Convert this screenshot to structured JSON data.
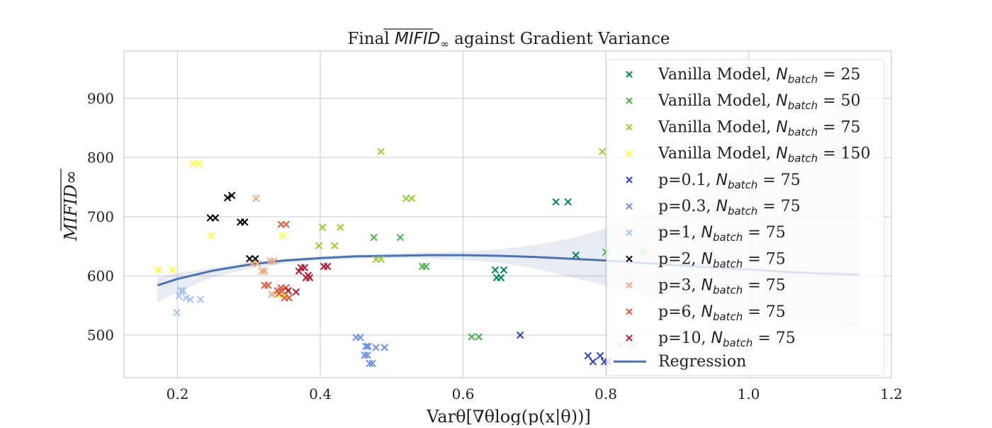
{
  "chart_data": {
    "type": "scatter",
    "title": "Final MIFID∞ against Gradient Variance",
    "title_parts": {
      "prefix": "Final ",
      "main": "MIFID",
      "sub": "∞",
      "suffix": " against Gradient Variance"
    },
    "xlabel": "Varθ[∇θlog(p(x|θ))]",
    "ylabel": "MIFID∞",
    "xlim": [
      0.125,
      1.2
    ],
    "ylim": [
      428,
      980
    ],
    "x_ticks": [
      0.2,
      0.4,
      0.6,
      0.8,
      1.0,
      1.2
    ],
    "x_tick_labels": [
      "0.2",
      "0.4",
      "0.6",
      "0.8",
      "1.0",
      "1.2"
    ],
    "y_ticks": [
      500,
      600,
      700,
      800,
      900
    ],
    "y_tick_labels": [
      "500",
      "600",
      "700",
      "800",
      "900"
    ],
    "grid": true,
    "legend_position": "top-right",
    "series": [
      {
        "name": "Vanilla Model, N_batch = 25",
        "label_prefix": "Vanilla Model, ",
        "n_value": "25",
        "color": "#00875a",
        "points": [
          [
            0.73,
            725
          ],
          [
            0.747,
            725
          ],
          [
            0.758,
            635
          ],
          [
            0.645,
            610
          ],
          [
            0.657,
            610
          ],
          [
            0.647,
            597
          ],
          [
            0.653,
            597
          ]
        ]
      },
      {
        "name": "Vanilla Model, N_batch = 50",
        "label_prefix": "Vanilla Model, ",
        "n_value": "50",
        "color": "#4daf4a",
        "points": [
          [
            0.475,
            665
          ],
          [
            0.512,
            665
          ],
          [
            0.543,
            616
          ],
          [
            0.548,
            616
          ],
          [
            0.612,
            497
          ],
          [
            0.622,
            497
          ],
          [
            0.8,
            640
          ]
        ]
      },
      {
        "name": "Vanilla Model, N_batch = 75",
        "label_prefix": "Vanilla Model, ",
        "n_value": "75",
        "color": "#9acd32",
        "points": [
          [
            0.485,
            810
          ],
          [
            0.52,
            731
          ],
          [
            0.528,
            731
          ],
          [
            0.403,
            682
          ],
          [
            0.428,
            682
          ],
          [
            0.398,
            651
          ],
          [
            0.42,
            651
          ],
          [
            0.478,
            628
          ],
          [
            0.485,
            628
          ],
          [
            0.795,
            810
          ],
          [
            0.852,
            640
          ]
        ]
      },
      {
        "name": "Vanilla Model, N_batch = 150",
        "label_prefix": "Vanilla Model, ",
        "n_value": "150",
        "color": "#ffff33",
        "points": [
          [
            0.222,
            790
          ],
          [
            0.23,
            790
          ],
          [
            0.247,
            668
          ],
          [
            0.347,
            668
          ],
          [
            0.173,
            610
          ],
          [
            0.193,
            610
          ],
          [
            0.34,
            568
          ],
          [
            0.35,
            568
          ]
        ]
      },
      {
        "name": "p=0.1, N_batch = 75",
        "label_prefix": "p=0.1, ",
        "n_value": "75",
        "color": "#2b3fbf",
        "points": [
          [
            0.68,
            500
          ],
          [
            0.775,
            465
          ],
          [
            0.782,
            455
          ],
          [
            0.792,
            465
          ],
          [
            0.798,
            455
          ],
          [
            0.803,
            455
          ]
        ]
      },
      {
        "name": "p=0.3, N_batch = 75",
        "label_prefix": "p=0.3, ",
        "n_value": "75",
        "color": "#6a8fe8",
        "points": [
          [
            0.45,
            496
          ],
          [
            0.456,
            496
          ],
          [
            0.464,
            481
          ],
          [
            0.467,
            481
          ],
          [
            0.478,
            479
          ],
          [
            0.49,
            479
          ],
          [
            0.462,
            466
          ],
          [
            0.466,
            466
          ],
          [
            0.469,
            452
          ],
          [
            0.473,
            452
          ]
        ]
      },
      {
        "name": "p=1, N_batch = 75",
        "label_prefix": "p=1, ",
        "n_value": "75",
        "color": "#a9c2f2",
        "points": [
          [
            0.205,
            575
          ],
          [
            0.208,
            575
          ],
          [
            0.202,
            566
          ],
          [
            0.212,
            563
          ],
          [
            0.218,
            560
          ],
          [
            0.232,
            560
          ],
          [
            0.199,
            538
          ],
          [
            0.82,
            483
          ],
          [
            0.838,
            483
          ]
        ]
      },
      {
        "name": "p=2, N_batch = 75",
        "label_prefix": "p=2, ",
        "n_value": "75",
        "color": "#000000",
        "points": [
          [
            0.27,
            732
          ],
          [
            0.276,
            736
          ],
          [
            0.246,
            698
          ],
          [
            0.253,
            698
          ],
          [
            0.288,
            691
          ],
          [
            0.294,
            691
          ],
          [
            0.301,
            629
          ],
          [
            0.309,
            629
          ]
        ]
      },
      {
        "name": "p=3, N_batch = 75",
        "label_prefix": "p=3, ",
        "n_value": "75",
        "color": "#f4a582",
        "points": [
          [
            0.31,
            731
          ],
          [
            0.33,
            625
          ],
          [
            0.335,
            625
          ],
          [
            0.305,
            621
          ],
          [
            0.312,
            621
          ],
          [
            0.318,
            608
          ],
          [
            0.322,
            608
          ],
          [
            0.332,
            569
          ]
        ]
      },
      {
        "name": "p=6, N_batch = 75",
        "label_prefix": "p=6, ",
        "n_value": "75",
        "color": "#e05a3e",
        "points": [
          [
            0.345,
            687
          ],
          [
            0.352,
            687
          ],
          [
            0.322,
            584
          ],
          [
            0.327,
            584
          ],
          [
            0.345,
            580
          ],
          [
            0.352,
            580
          ],
          [
            0.34,
            575
          ],
          [
            0.345,
            575
          ],
          [
            0.342,
            570
          ],
          [
            0.35,
            563
          ],
          [
            0.356,
            563
          ]
        ]
      },
      {
        "name": "p=10, N_batch = 75",
        "label_prefix": "p=10, ",
        "n_value": "75",
        "color": "#b2182b",
        "points": [
          [
            0.373,
            614
          ],
          [
            0.378,
            614
          ],
          [
            0.37,
            608
          ],
          [
            0.383,
            601
          ],
          [
            0.385,
            597
          ],
          [
            0.38,
            597
          ],
          [
            0.405,
            616
          ],
          [
            0.41,
            616
          ],
          [
            0.355,
            575
          ],
          [
            0.366,
            573
          ]
        ]
      }
    ],
    "regression": {
      "name": "Regression",
      "color": "#4c72b0",
      "x": [
        0.172,
        0.2,
        0.25,
        0.3,
        0.35,
        0.4,
        0.45,
        0.5,
        0.55,
        0.6,
        0.65,
        0.7,
        0.75,
        0.8,
        0.85,
        0.9,
        0.95,
        1.0,
        1.05,
        1.1,
        1.155
      ],
      "y": [
        584,
        595,
        609,
        619,
        626,
        630,
        633,
        634,
        635,
        635,
        634,
        632,
        629,
        626,
        622,
        618,
        614,
        611,
        607,
        604,
        602
      ],
      "ci_upper": [
        597,
        605,
        614,
        623,
        629,
        633,
        636,
        638,
        640,
        641,
        645,
        652,
        663,
        680,
        700,
        725,
        755,
        790,
        825,
        865,
        905
      ],
      "ci_lower": [
        556,
        573,
        598,
        612,
        621,
        626,
        629,
        630,
        629,
        627,
        622,
        613,
        598,
        584,
        568,
        553,
        540,
        531,
        524,
        518,
        512
      ]
    },
    "legend_subscript": "batch"
  }
}
